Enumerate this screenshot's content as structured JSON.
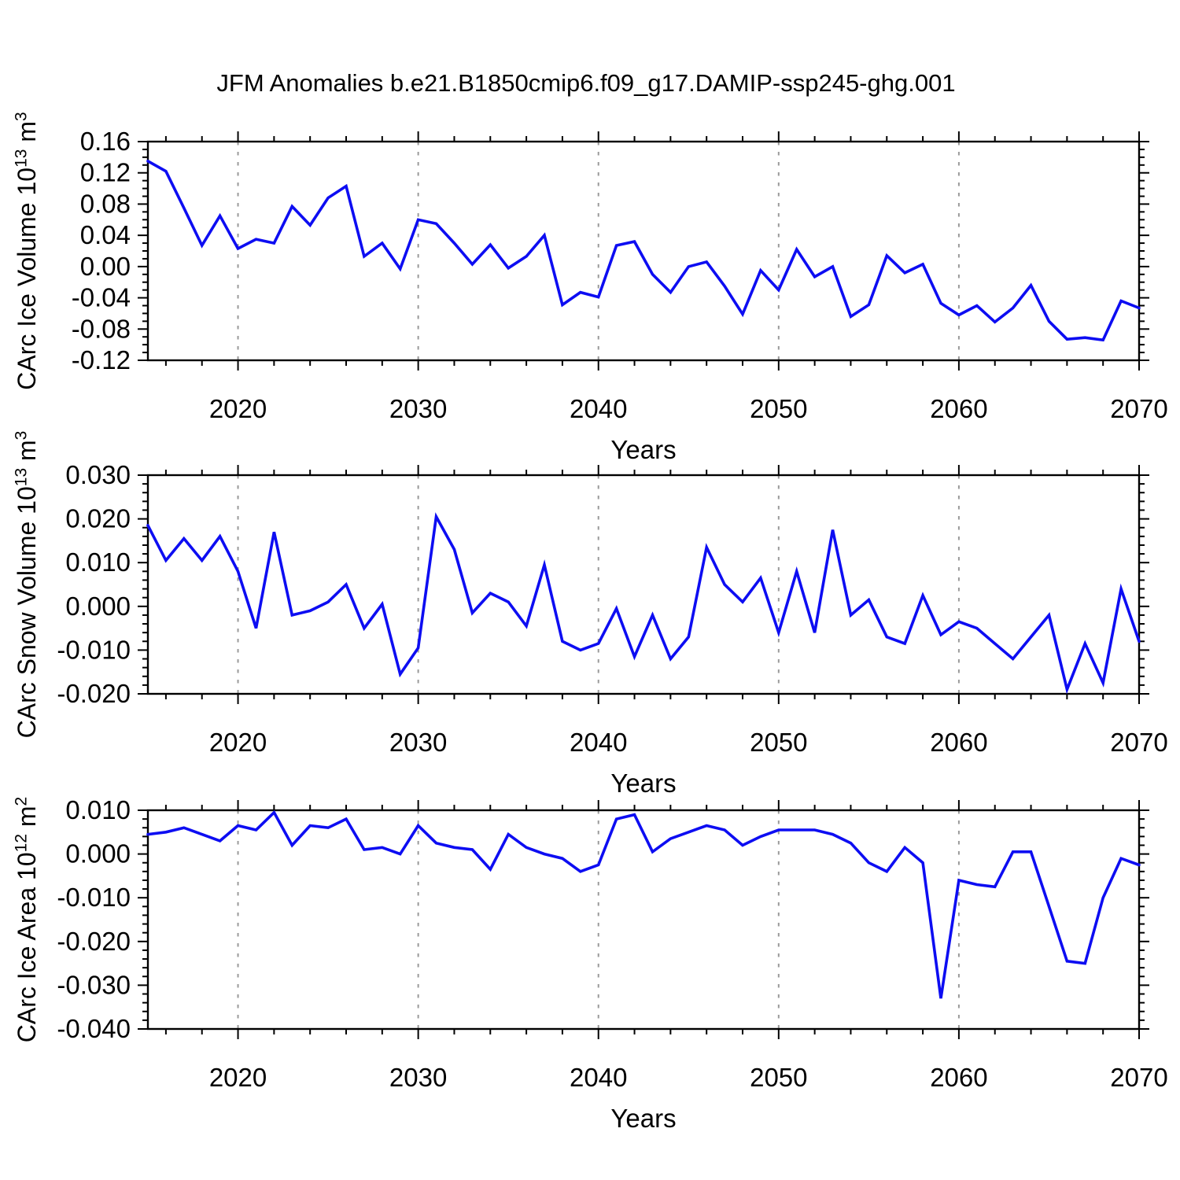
{
  "title": "JFM Anomalies b.e21.B1850cmip6.f09_g17.DAMIP-ssp245-ghg.001",
  "x_axis": {
    "label": "Years",
    "start": 2015,
    "end": 2070,
    "major_ticks": [
      2020,
      2030,
      2040,
      2050,
      2060,
      2070
    ],
    "minor_tick_step": 2,
    "gridlines": [
      2020,
      2030,
      2040,
      2050,
      2060
    ]
  },
  "style": {
    "line_color": "#0d0df2",
    "grid_color": "#9a9a9a",
    "frame_color": "#000000"
  },
  "chart_data": [
    {
      "type": "line",
      "name": "ice-volume",
      "title": "",
      "xlabel": "Years",
      "ylabel": {
        "text": "CArc Ice Volume 10",
        "sup1": "13",
        "mid": " m",
        "sup2": "3"
      },
      "x": {
        "start": 2015,
        "end": 2070,
        "step": 1
      },
      "ylim": [
        -0.12,
        0.16
      ],
      "ytick_major_step": 0.04,
      "ytick_minor_step": 0.01,
      "ytick_labels": [
        "0.16",
        "0.12",
        "0.08",
        "0.04",
        "0.00",
        "-0.04",
        "-0.08",
        "-0.12"
      ],
      "values": [
        0.135,
        0.122,
        0.075,
        0.027,
        0.065,
        0.023,
        0.035,
        0.03,
        0.077,
        0.053,
        0.088,
        0.103,
        0.013,
        0.03,
        -0.003,
        0.06,
        0.055,
        0.03,
        0.003,
        0.028,
        -0.002,
        0.013,
        0.04,
        -0.049,
        -0.033,
        -0.039,
        0.027,
        0.032,
        -0.01,
        -0.033,
        0.0,
        0.006,
        -0.025,
        -0.061,
        -0.005,
        -0.03,
        0.022,
        -0.013,
        0.0,
        -0.064,
        -0.049,
        0.014,
        -0.008,
        0.003,
        -0.047,
        -0.062,
        -0.05,
        -0.071,
        -0.053,
        -0.024,
        -0.07,
        -0.093,
        -0.091,
        -0.094,
        -0.044,
        -0.053
      ]
    },
    {
      "type": "line",
      "name": "snow-volume",
      "title": "",
      "xlabel": "Years",
      "ylabel": {
        "text": "CArc Snow Volume 10",
        "sup1": "13",
        "mid": " m",
        "sup2": "3"
      },
      "x": {
        "start": 2015,
        "end": 2070,
        "step": 1
      },
      "ylim": [
        -0.02,
        0.03
      ],
      "ytick_major_step": 0.01,
      "ytick_minor_step": 0.002,
      "ytick_labels": [
        "0.030",
        "0.020",
        "0.010",
        "0.000",
        "-0.010",
        "-0.020"
      ],
      "values": [
        0.0185,
        0.0105,
        0.0155,
        0.0105,
        0.016,
        0.008,
        -0.005,
        0.017,
        -0.002,
        -0.001,
        0.001,
        0.005,
        -0.005,
        0.0005,
        -0.0155,
        -0.0095,
        0.0205,
        0.013,
        -0.0015,
        0.003,
        0.001,
        -0.0045,
        0.0095,
        -0.008,
        -0.01,
        -0.0085,
        -0.0005,
        -0.0115,
        -0.002,
        -0.012,
        -0.007,
        0.0135,
        0.005,
        0.001,
        0.0065,
        -0.006,
        0.008,
        -0.006,
        0.0175,
        -0.002,
        0.0015,
        -0.007,
        -0.0085,
        0.0025,
        -0.0065,
        -0.0035,
        -0.005,
        -0.0085,
        -0.012,
        -0.007,
        -0.002,
        -0.019,
        -0.0085,
        -0.0175,
        0.004,
        -0.008
      ]
    },
    {
      "type": "line",
      "name": "ice-area",
      "title": "",
      "xlabel": "Years",
      "ylabel": {
        "text": "CArc Ice Area 10",
        "sup1": "12",
        "mid": " m",
        "sup2": "2"
      },
      "x": {
        "start": 2015,
        "end": 2070,
        "step": 1
      },
      "ylim": [
        -0.04,
        0.01
      ],
      "ytick_major_step": 0.01,
      "ytick_minor_step": 0.002,
      "ytick_labels": [
        "0.010",
        "0.000",
        "-0.010",
        "-0.020",
        "-0.030",
        "-0.040"
      ],
      "values": [
        0.0045,
        0.005,
        0.006,
        0.0045,
        0.003,
        0.0065,
        0.0055,
        0.0095,
        0.002,
        0.0065,
        0.006,
        0.008,
        0.001,
        0.0015,
        0.0,
        0.0065,
        0.0025,
        0.0015,
        0.001,
        -0.0035,
        0.0045,
        0.0015,
        0.0,
        -0.001,
        -0.004,
        -0.0025,
        0.008,
        0.009,
        0.0005,
        0.0035,
        0.005,
        0.0065,
        0.0055,
        0.002,
        0.004,
        0.0055,
        0.0055,
        0.0055,
        0.0045,
        0.0025,
        -0.002,
        -0.004,
        0.0015,
        -0.002,
        -0.033,
        -0.006,
        -0.007,
        -0.0075,
        0.0005,
        0.0005,
        -0.012,
        -0.0245,
        -0.025,
        -0.01,
        -0.001,
        -0.0025
      ]
    }
  ]
}
